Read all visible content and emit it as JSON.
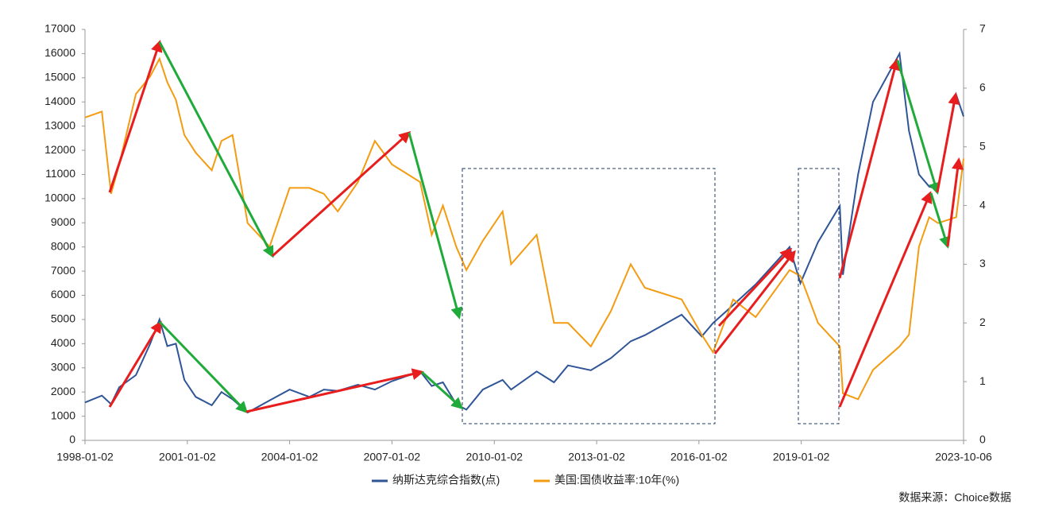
{
  "chart_data": {
    "type": "line",
    "x": [
      "1998-01-02",
      "1998-07-01",
      "1998-10-08",
      "1999-01-04",
      "1999-07-01",
      "1999-12-01",
      "2000-03-10",
      "2000-06-01",
      "2000-09-01",
      "2000-12-01",
      "2001-04-02",
      "2001-09-21",
      "2002-01-02",
      "2002-05-01",
      "2002-10-09",
      "2003-06-02",
      "2004-01-02",
      "2004-08-02",
      "2005-01-03",
      "2005-06-01",
      "2006-01-03",
      "2006-07-03",
      "2007-01-02",
      "2007-10-31",
      "2008-03-03",
      "2008-07-01",
      "2008-11-20",
      "2009-03-09",
      "2009-09-01",
      "2010-04-01",
      "2010-07-01",
      "2011-04-01",
      "2011-10-03",
      "2012-03-01",
      "2012-11-01",
      "2013-06-03",
      "2014-01-02",
      "2014-06-02",
      "2015-07-01",
      "2016-02-01",
      "2016-06-01",
      "2017-01-03",
      "2017-09-01",
      "2018-08-30",
      "2018-12-24",
      "2019-07-01",
      "2020-02-19",
      "2020-03-23",
      "2020-09-01",
      "2021-02-08",
      "2021-11-19",
      "2022-03-01",
      "2022-06-16",
      "2022-10-03",
      "2023-01-05",
      "2023-07-19",
      "2023-10-06"
    ],
    "series": [
      {
        "name": "纳斯达克综合指数(点)",
        "color": "#2f5597",
        "values": [
          1570,
          1850,
          1500,
          2200,
          2700,
          4000,
          5000,
          3900,
          4000,
          2500,
          1800,
          1450,
          2000,
          1700,
          1150,
          1650,
          2100,
          1800,
          2100,
          2050,
          2300,
          2100,
          2450,
          2850,
          2250,
          2400,
          1500,
          1270,
          2100,
          2500,
          2100,
          2850,
          2400,
          3100,
          2900,
          3400,
          4100,
          4350,
          5200,
          4300,
          4850,
          5600,
          6450,
          8000,
          6500,
          8200,
          9700,
          6850,
          11000,
          14000,
          16000,
          12800,
          11000,
          10500,
          10400,
          14300,
          13400
        ]
      },
      {
        "name": "美国:国债收益率:10年(%)",
        "color": "#f39c12",
        "axis": "y2",
        "values": [
          5.5,
          5.6,
          4.2,
          4.7,
          5.9,
          6.2,
          6.5,
          6.1,
          5.8,
          5.2,
          4.9,
          4.6,
          5.1,
          5.2,
          3.7,
          3.3,
          4.3,
          4.3,
          4.2,
          3.9,
          4.4,
          5.1,
          4.7,
          4.4,
          3.5,
          4.0,
          3.3,
          2.9,
          3.4,
          3.9,
          3.0,
          3.5,
          2.0,
          2.0,
          1.6,
          2.2,
          3.0,
          2.6,
          2.4,
          1.8,
          1.5,
          2.4,
          2.1,
          2.9,
          2.8,
          2.0,
          1.6,
          0.8,
          0.7,
          1.2,
          1.6,
          1.8,
          3.3,
          3.8,
          3.7,
          3.8,
          4.8
        ]
      }
    ],
    "xticks": [
      "1998-01-02",
      "2001-01-02",
      "2004-01-02",
      "2007-01-02",
      "2010-01-02",
      "2013-01-02",
      "2016-01-02",
      "2019-01-02",
      "2023-10-06"
    ],
    "ylim": [
      0,
      17000
    ],
    "yticks": [
      0,
      1000,
      2000,
      3000,
      4000,
      5000,
      6000,
      7000,
      8000,
      9000,
      10000,
      11000,
      12000,
      13000,
      14000,
      15000,
      16000,
      17000
    ],
    "y2lim": [
      0,
      7
    ],
    "y2ticks": [
      0,
      1,
      2,
      3,
      4,
      5,
      6,
      7
    ],
    "legend": "bottom",
    "source": "数据来源：Choice数据"
  }
}
